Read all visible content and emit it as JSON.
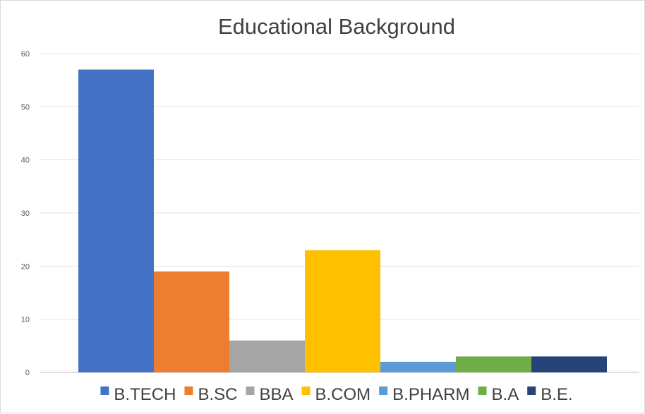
{
  "chart_data": {
    "type": "bar",
    "title": "Educational Background",
    "xlabel": "",
    "ylabel": "",
    "ylim": [
      0,
      60
    ],
    "yticks": [
      0,
      10,
      20,
      30,
      40,
      50,
      60
    ],
    "grid": true,
    "legend_position": "bottom",
    "series": [
      {
        "name": "B.TECH",
        "value": 57,
        "color": "#4472C4"
      },
      {
        "name": "B.SC",
        "value": 19,
        "color": "#ED7D31"
      },
      {
        "name": "BBA",
        "value": 6,
        "color": "#A5A5A5"
      },
      {
        "name": "B.COM",
        "value": 23,
        "color": "#FFC000"
      },
      {
        "name": "B.PHARM",
        "value": 2,
        "color": "#5B9BD5"
      },
      {
        "name": "B.A",
        "value": 3,
        "color": "#70AD47"
      },
      {
        "name": "B.E.",
        "value": 3,
        "color": "#264478"
      }
    ]
  }
}
